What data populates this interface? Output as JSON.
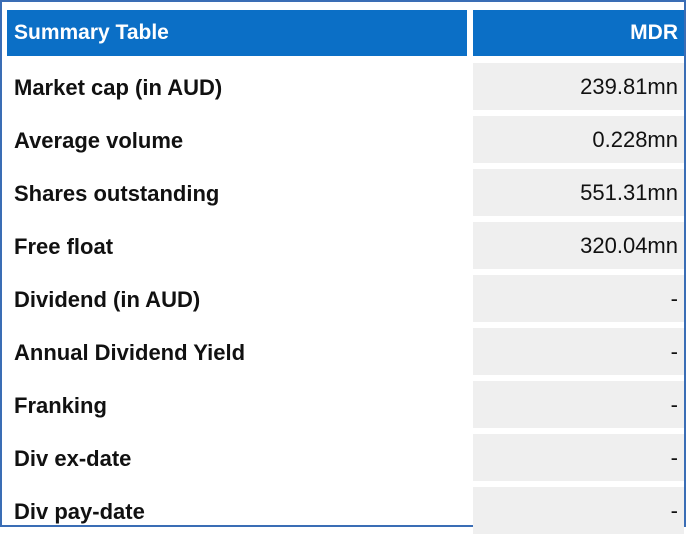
{
  "table": {
    "header": {
      "label": "Summary Table",
      "value": "MDR"
    },
    "rows": [
      {
        "label": "Market cap (in AUD)",
        "value": "239.81mn"
      },
      {
        "label": "Average volume",
        "value": "0.228mn"
      },
      {
        "label": "Shares outstanding",
        "value": "551.31mn"
      },
      {
        "label": "Free float",
        "value": "320.04mn"
      },
      {
        "label": "Dividend (in AUD)",
        "value": "-"
      },
      {
        "label": "Annual Dividend Yield",
        "value": "-"
      },
      {
        "label": "Franking",
        "value": "-"
      },
      {
        "label": "Div ex-date",
        "value": "-"
      },
      {
        "label": "Div pay-date",
        "value": "-"
      }
    ],
    "colors": {
      "header_bg": "#0b6fc6",
      "value_bg": "#efefef",
      "border": "#3a6db5"
    }
  }
}
